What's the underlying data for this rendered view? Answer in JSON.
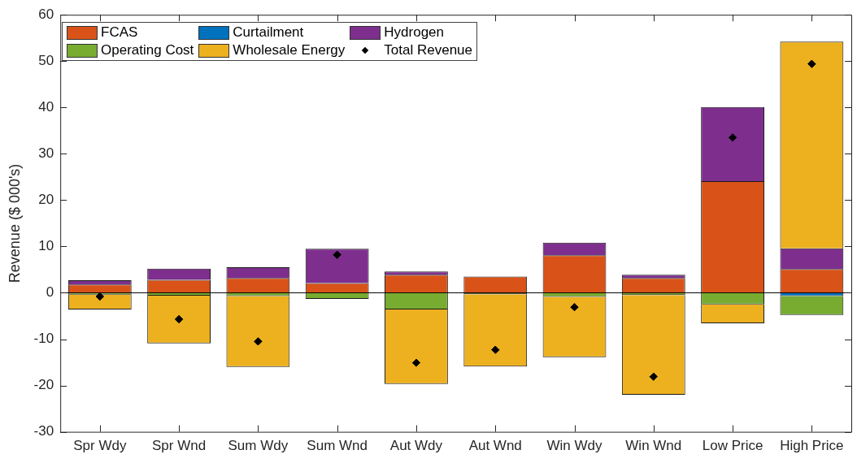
{
  "chart_data": {
    "type": "bar",
    "stacked": true,
    "ylabel": "Revenue ($ 000's)",
    "categories": [
      "Spr Wdy",
      "Spr Wnd",
      "Sum Wdy",
      "Sum Wnd",
      "Aut Wdy",
      "Aut Wnd",
      "Win Wdy",
      "Win Wnd",
      "Low Price",
      "High Price"
    ],
    "series": [
      {
        "name": "FCAS",
        "color": "#d95319",
        "values": [
          1.8,
          2.8,
          3.2,
          2.1,
          3.9,
          3.5,
          8.1,
          3.2,
          24.1,
          5.1
        ]
      },
      {
        "name": "Curtailment",
        "color": "#0072bd",
        "values": [
          0,
          0,
          0,
          0,
          0,
          0,
          0,
          0,
          0,
          -0.7
        ]
      },
      {
        "name": "Hydrogen",
        "color": "#7e2f8e",
        "values": [
          0.9,
          2.4,
          2.3,
          7.4,
          0.7,
          null,
          2.7,
          0.7,
          16.0,
          4.5
        ]
      },
      {
        "name": "Operating Cost",
        "color": "#77ac30",
        "values": [
          -0.4,
          -0.6,
          -0.7,
          -1.3,
          -3.6,
          -0.3,
          -0.9,
          -0.5,
          -2.5,
          -4.1
        ]
      },
      {
        "name": "Wholesale Energy",
        "color": "#edb120",
        "values": [
          -3.2,
          -10.3,
          -15.3,
          0,
          -16.1,
          -15.6,
          -13.0,
          -21.5,
          -4.1,
          44.6
        ]
      },
      {
        "name": "Total Revenue",
        "type": "scatter",
        "color": "#000000",
        "marker": "diamond",
        "x": [
          "Spr Wdy",
          "Spr Wnd",
          "Sum Wdy",
          "Sum Wnd",
          "Aut Wdy",
          "Aut Wnd",
          "Win Wdy",
          "Win Wnd",
          "Low Price",
          "High Price"
        ],
        "values": [
          -0.8,
          -5.7,
          -10.5,
          8.2,
          -15.1,
          -12.3,
          -3.1,
          -18.1,
          33.5,
          49.4
        ]
      }
    ],
    "ylim": [
      -30,
      60
    ],
    "yticks": [
      -30,
      -20,
      -10,
      0,
      10,
      20,
      30,
      40,
      50,
      60
    ],
    "ref_lines": [
      {
        "axis": "y",
        "value": 0,
        "color": "#000000"
      }
    ],
    "grid": false,
    "legend": "top left"
  }
}
